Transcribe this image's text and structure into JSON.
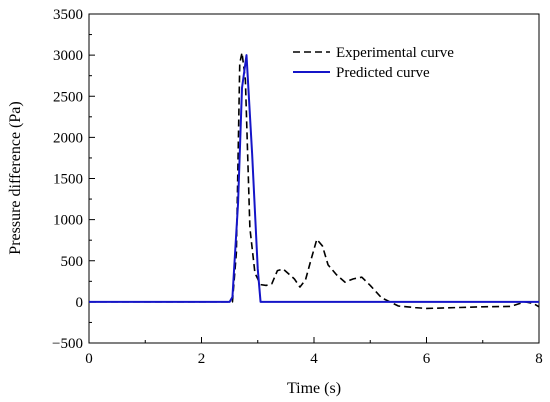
{
  "chart_data": {
    "type": "line",
    "title": "",
    "xlabel": "Time (s)",
    "ylabel": "Pressure difference (Pa)",
    "xlim": [
      0,
      8
    ],
    "ylim": [
      -500,
      3500
    ],
    "xticks": [
      0,
      2,
      4,
      6,
      8
    ],
    "xtick_labels": [
      "0",
      "2",
      "4",
      "6",
      "8"
    ],
    "yticks": [
      -500,
      0,
      500,
      1000,
      1500,
      2000,
      2500,
      3000,
      3500
    ],
    "ytick_labels": [
      "−500",
      "0",
      "500",
      "1000",
      "1500",
      "2000",
      "2500",
      "3000",
      "3500"
    ],
    "grid": false,
    "legend_position": "top-right",
    "series": [
      {
        "name": "Experimental curve",
        "style": "dashed",
        "color": "#000000",
        "x": [
          0,
          2.45,
          2.55,
          2.62,
          2.68,
          2.72,
          2.78,
          2.86,
          2.95,
          3.05,
          3.15,
          3.25,
          3.35,
          3.45,
          3.55,
          3.65,
          3.75,
          3.85,
          3.95,
          4.05,
          4.15,
          4.25,
          4.4,
          4.55,
          4.7,
          4.85,
          5.0,
          5.2,
          5.5,
          5.8,
          6.0,
          6.5,
          7.0,
          7.5,
          7.75,
          7.9,
          8.0
        ],
        "y": [
          0,
          0,
          0,
          600,
          2900,
          3030,
          2700,
          900,
          350,
          210,
          200,
          220,
          380,
          400,
          340,
          280,
          180,
          270,
          520,
          760,
          680,
          450,
          330,
          240,
          280,
          300,
          200,
          50,
          -50,
          -70,
          -80,
          -70,
          -60,
          -55,
          0,
          -20,
          -60
        ]
      },
      {
        "name": "Predicted curve",
        "style": "solid",
        "color": "#1515c8",
        "x": [
          0,
          2.5,
          2.55,
          2.65,
          2.72,
          2.8,
          2.9,
          3.0,
          3.05,
          3.2,
          8.0
        ],
        "y": [
          0,
          0,
          60,
          1200,
          2600,
          3000,
          1800,
          400,
          0,
          0,
          0
        ]
      }
    ]
  }
}
